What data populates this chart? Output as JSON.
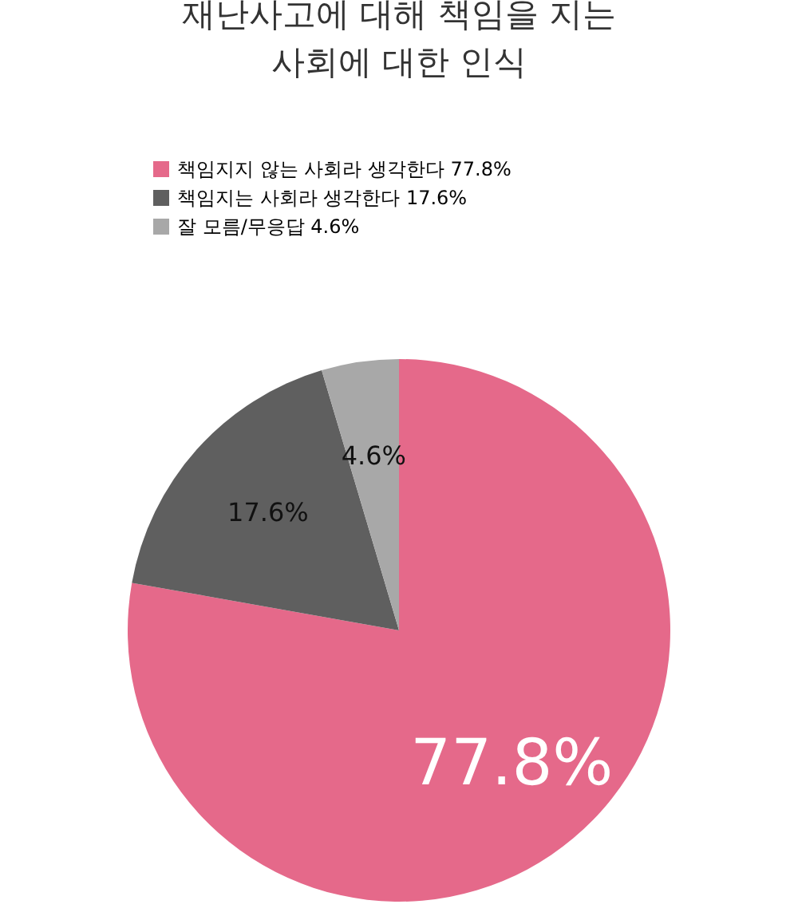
{
  "chart_data": {
    "type": "pie",
    "title": "재난사고에 대해 책임을 지는\n사회에 대한 인식",
    "categories": [
      "책임지지 않는 사회라 생각한다",
      "책임지는 사회라 생각한다",
      "잘 모름/무응답"
    ],
    "values": [
      77.8,
      17.6,
      4.6
    ],
    "colors": [
      "#e5698a",
      "#5f5f5f",
      "#a8a8a8"
    ],
    "value_labels": [
      "77.8%",
      "17.6%",
      "4.6%"
    ],
    "legend": "top left"
  }
}
